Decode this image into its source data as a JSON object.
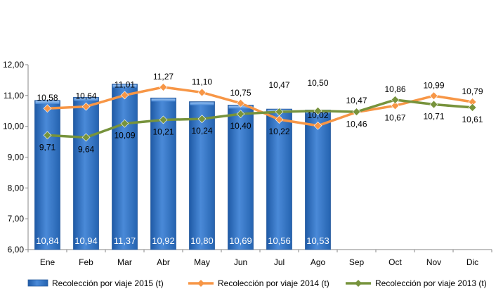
{
  "chart_data": {
    "type": "bar",
    "categories": [
      "Ene",
      "Feb",
      "Mar",
      "Abr",
      "May",
      "Jun",
      "Jul",
      "Ago",
      "Sep",
      "Oct",
      "Nov",
      "Dic"
    ],
    "ylim": [
      6,
      12
    ],
    "yticks": [
      "6,00",
      "7,00",
      "8,00",
      "9,00",
      "10,00",
      "11,00",
      "12,00"
    ],
    "grid": false,
    "legend_position": "bottom",
    "series": [
      {
        "name": "Recolección por viaje 2015 (t)",
        "kind": "bar",
        "color": "#3b78c8",
        "values": [
          10.84,
          10.94,
          11.37,
          10.92,
          10.8,
          10.69,
          10.56,
          10.53,
          null,
          null,
          null,
          null
        ],
        "labels": [
          "10,84",
          "10,94",
          "11,37",
          "10,92",
          "10,80",
          "10,69",
          "10,56",
          "10,53",
          "",
          "",
          "",
          ""
        ]
      },
      {
        "name": "Recolección por viaje 2014 (t)",
        "kind": "line",
        "color": "#f79646",
        "values": [
          10.58,
          10.64,
          11.01,
          11.27,
          11.1,
          10.75,
          10.22,
          10.02,
          10.46,
          10.67,
          10.99,
          10.79
        ],
        "labels": [
          "10,58",
          "10,64",
          "11,01",
          "11,27",
          "11,10",
          "10,75",
          "10,22",
          "10,02",
          "10,46",
          "10,67",
          "10,99",
          "10,79"
        ]
      },
      {
        "name": "Recolección por viaje 2013 (t)",
        "kind": "line",
        "color": "#77933c",
        "values": [
          9.71,
          9.64,
          10.09,
          10.21,
          10.24,
          10.4,
          10.47,
          10.5,
          10.47,
          10.86,
          10.71,
          10.61
        ],
        "labels": [
          "9,71",
          "9,64",
          "10,09",
          "10,21",
          "10,24",
          "10,40",
          "10,47",
          "10,50",
          "10,47",
          "10,86",
          "10,71",
          "10,61"
        ]
      }
    ]
  }
}
